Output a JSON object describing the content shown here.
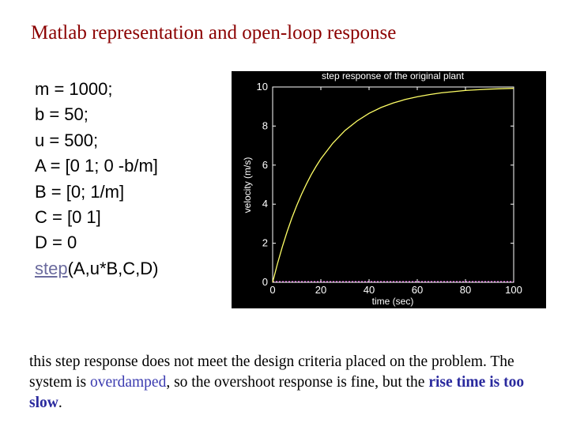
{
  "title": "Matlab representation and open-loop response",
  "code_lines": [
    "m = 1000;",
    "b = 50;",
    "u = 500;",
    "A = [0 1; 0 -b/m]",
    "B = [0; 1/m]",
    "C = [0 1]",
    "D = 0"
  ],
  "step_call": {
    "link_text": "step",
    "rest": "(A,u*B,C,D)"
  },
  "chart_data": {
    "type": "line",
    "title": "step response of the original plant",
    "xlabel": "time (sec)",
    "ylabel": "velocity (m/s)",
    "xlim": [
      0,
      100
    ],
    "ylim": [
      0,
      10
    ],
    "xticks": [
      0,
      20,
      40,
      60,
      80,
      100
    ],
    "yticks": [
      0,
      2,
      4,
      6,
      8,
      10
    ],
    "x": [
      0,
      2,
      4,
      6,
      8,
      10,
      12,
      14,
      16,
      18,
      20,
      25,
      30,
      35,
      40,
      45,
      50,
      55,
      60,
      65,
      70,
      75,
      80,
      85,
      90,
      95,
      100
    ],
    "y": [
      0,
      0.95,
      1.81,
      2.59,
      3.3,
      3.93,
      4.51,
      5.03,
      5.51,
      5.93,
      6.32,
      7.13,
      7.77,
      8.26,
      8.65,
      8.95,
      9.18,
      9.36,
      9.5,
      9.61,
      9.7,
      9.76,
      9.82,
      9.86,
      9.89,
      9.91,
      9.93
    ],
    "background": "#000000",
    "line_color": "#ffff66",
    "axis_color": "#ffffff",
    "zero_line_color": "#ff66ff",
    "grid": false
  },
  "caption": {
    "part1": "this step response does not meet the design criteria placed on the problem. The system is ",
    "overdamped": "overdamped",
    "part2": ", so the overshoot response is fine, but the ",
    "rise_time": "rise time is too slow",
    "part3": "."
  }
}
